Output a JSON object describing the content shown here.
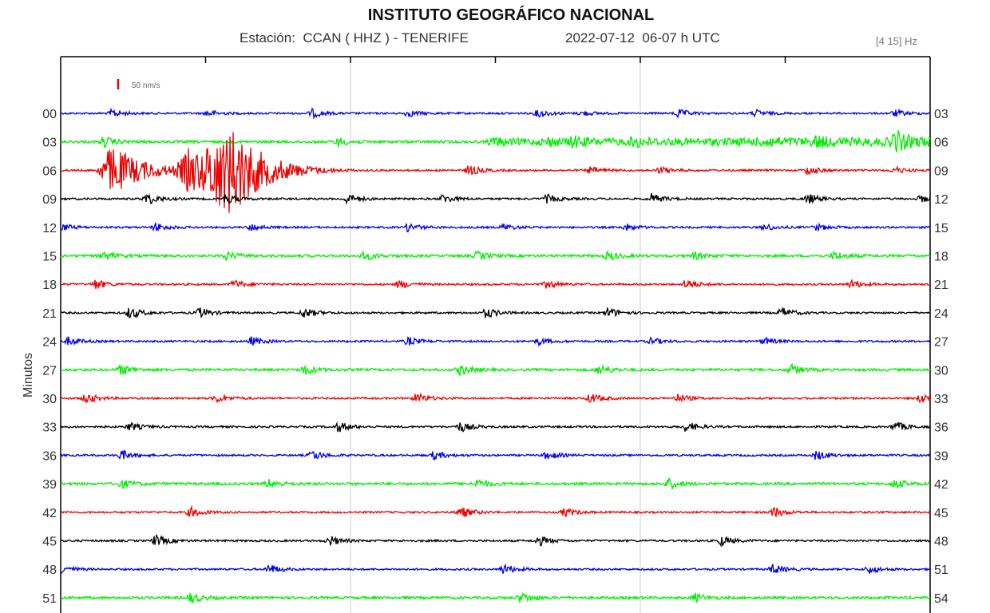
{
  "header": {
    "title": "INSTITUTO GEOGRÁFICO NACIONAL",
    "station": "Estación:  CCAN ( HHZ ) - TENERIFE",
    "datetime": "2022-07-12  06-07 h UTC",
    "filter": "[4 15] Hz"
  },
  "chart_data": {
    "type": "line",
    "title": "INSTITUTO GEOGRÁFICO NACIONAL",
    "ylabel": "Minutos",
    "scale_label": "50 nm/s",
    "trace_colors": [
      "#0000ee",
      "#00ee00",
      "#ee0000",
      "#000000"
    ],
    "left_ticks": [
      "00",
      "03",
      "06",
      "09",
      "12",
      "15",
      "18",
      "21",
      "24",
      "27",
      "30",
      "33",
      "36",
      "39",
      "42",
      "45",
      "48",
      "51"
    ],
    "right_ticks": [
      "03",
      "06",
      "09",
      "12",
      "15",
      "18",
      "21",
      "24",
      "27",
      "30",
      "33",
      "36",
      "39",
      "42",
      "45",
      "48",
      "51",
      "54"
    ],
    "events": [
      [
        [
          0.06,
          5
        ],
        [
          0.17,
          4
        ],
        [
          0.29,
          5
        ],
        [
          0.4,
          4
        ],
        [
          0.55,
          5
        ],
        [
          0.6,
          3
        ],
        [
          0.71,
          5
        ],
        [
          0.8,
          4
        ],
        [
          0.96,
          4
        ]
      ],
      [
        [
          0.05,
          6
        ],
        [
          0.32,
          5
        ],
        [
          0.5,
          3
        ],
        [
          0.56,
          4
        ],
        [
          0.59,
          5
        ],
        [
          0.66,
          5
        ],
        [
          0.81,
          4
        ],
        [
          0.87,
          5
        ],
        [
          0.96,
          12
        ]
      ],
      [
        [
          0.06,
          30
        ],
        [
          0.15,
          26
        ],
        [
          0.18,
          34
        ],
        [
          0.2,
          28
        ],
        [
          0.47,
          6
        ],
        [
          0.61,
          4
        ],
        [
          0.69,
          4
        ],
        [
          0.86,
          5
        ],
        [
          0.96,
          4
        ]
      ],
      [
        [
          0.1,
          7
        ],
        [
          0.19,
          6
        ],
        [
          0.33,
          6
        ],
        [
          0.44,
          5
        ],
        [
          0.56,
          5
        ],
        [
          0.68,
          6
        ],
        [
          0.86,
          6
        ],
        [
          0.99,
          4
        ]
      ],
      [
        [
          0.0,
          5
        ],
        [
          0.11,
          5
        ],
        [
          0.22,
          4
        ],
        [
          0.4,
          5
        ],
        [
          0.51,
          4
        ],
        [
          0.65,
          4
        ],
        [
          0.81,
          4
        ],
        [
          0.87,
          4
        ]
      ],
      [
        [
          0.05,
          5
        ],
        [
          0.19,
          5
        ],
        [
          0.35,
          5
        ],
        [
          0.48,
          5
        ],
        [
          0.63,
          5
        ],
        [
          0.73,
          4
        ],
        [
          0.89,
          5
        ]
      ],
      [
        [
          0.04,
          6
        ],
        [
          0.2,
          5
        ],
        [
          0.39,
          5
        ],
        [
          0.56,
          5
        ],
        [
          0.72,
          6
        ],
        [
          0.91,
          5
        ]
      ],
      [
        [
          0.08,
          7
        ],
        [
          0.16,
          6
        ],
        [
          0.28,
          6
        ],
        [
          0.49,
          6
        ],
        [
          0.63,
          6
        ],
        [
          0.83,
          6
        ]
      ],
      [
        [
          0.01,
          5
        ],
        [
          0.22,
          5
        ],
        [
          0.4,
          5
        ],
        [
          0.55,
          4
        ],
        [
          0.68,
          4
        ],
        [
          0.81,
          4
        ]
      ],
      [
        [
          0.07,
          6
        ],
        [
          0.28,
          6
        ],
        [
          0.46,
          6
        ],
        [
          0.62,
          6
        ],
        [
          0.84,
          6
        ]
      ],
      [
        [
          0.03,
          6
        ],
        [
          0.18,
          5
        ],
        [
          0.41,
          6
        ],
        [
          0.61,
          6
        ],
        [
          0.71,
          5
        ],
        [
          0.99,
          6
        ]
      ],
      [
        [
          0.08,
          5
        ],
        [
          0.32,
          6
        ],
        [
          0.46,
          6
        ],
        [
          0.72,
          6
        ],
        [
          0.96,
          6
        ]
      ],
      [
        [
          0.07,
          6
        ],
        [
          0.29,
          6
        ],
        [
          0.43,
          5
        ],
        [
          0.56,
          5
        ],
        [
          0.87,
          6
        ]
      ],
      [
        [
          0.07,
          5
        ],
        [
          0.24,
          5
        ],
        [
          0.48,
          5
        ],
        [
          0.7,
          6
        ],
        [
          0.96,
          5
        ]
      ],
      [
        [
          0.15,
          6
        ],
        [
          0.46,
          7
        ],
        [
          0.58,
          5
        ],
        [
          0.82,
          6
        ]
      ],
      [
        [
          0.11,
          7
        ],
        [
          0.31,
          6
        ],
        [
          0.55,
          6
        ],
        [
          0.76,
          6
        ]
      ],
      [
        [
          0.0,
          6
        ],
        [
          0.24,
          6
        ],
        [
          0.51,
          6
        ],
        [
          0.82,
          6
        ],
        [
          0.93,
          5
        ]
      ],
      [
        [
          0.15,
          6
        ],
        [
          0.53,
          6
        ],
        [
          0.73,
          5
        ]
      ]
    ]
  }
}
